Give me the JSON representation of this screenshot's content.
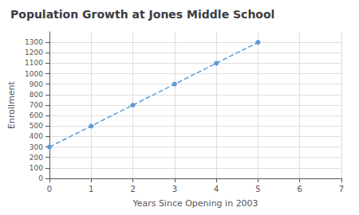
{
  "chart_data": {
    "type": "line",
    "title": "Population Growth at Jones Middle School",
    "xlabel": "Years Since Opening in 2003",
    "ylabel": "Enrollment",
    "x": [
      0,
      1,
      2,
      3,
      4,
      5
    ],
    "values": [
      300,
      500,
      700,
      900,
      1100,
      1300
    ],
    "xlim": [
      0,
      7
    ],
    "xticks": [
      0,
      1,
      2,
      3,
      4,
      5,
      6,
      7
    ],
    "ylim": [
      0,
      1400
    ],
    "yticks": [
      0,
      100,
      200,
      300,
      400,
      500,
      600,
      700,
      800,
      900,
      1000,
      1100,
      1200,
      1300
    ],
    "color": "#5b9bd5",
    "line_style": "dashed",
    "marker": "circle",
    "grid": true
  }
}
